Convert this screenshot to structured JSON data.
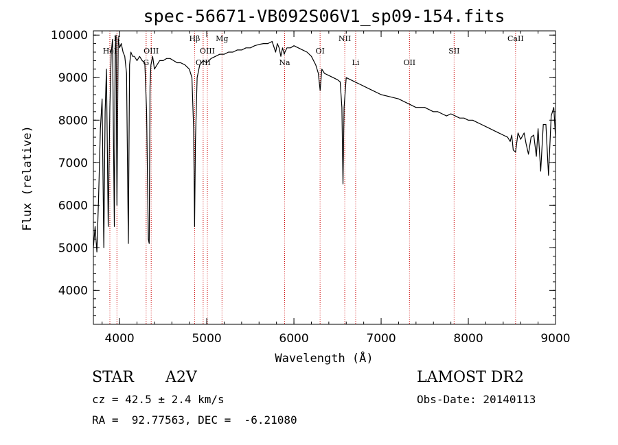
{
  "chart_data": {
    "type": "line",
    "title": "spec-56671-VB092S06V1_sp09-154.fits",
    "xlabel": "Wavelength (Å)",
    "ylabel": "Flux (relative)",
    "xlim": [
      3700,
      9000
    ],
    "ylim": [
      3200,
      10100
    ],
    "xticks": [
      4000,
      5000,
      6000,
      7000,
      8000,
      9000
    ],
    "yticks": [
      4000,
      5000,
      6000,
      7000,
      8000,
      9000,
      10000
    ],
    "grid": false,
    "line_color": "#000000",
    "marker_color": "#cc0000",
    "spectral_lines": [
      {
        "label": "HeI",
        "x": 3889,
        "row": "mid"
      },
      {
        "label": "H",
        "x": 3970,
        "row": "top"
      },
      {
        "label": "G",
        "x": 4305,
        "row": "low"
      },
      {
        "label": "OIII",
        "x": 4363,
        "row": "mid"
      },
      {
        "label": "Hβ",
        "x": 4861,
        "row": "top"
      },
      {
        "label": "OIII",
        "x": 4959,
        "row": "low"
      },
      {
        "label": "OIII",
        "x": 5007,
        "row": "mid"
      },
      {
        "label": "Mg",
        "x": 5175,
        "row": "top"
      },
      {
        "label": "Na",
        "x": 5893,
        "row": "low"
      },
      {
        "label": "OI",
        "x": 6300,
        "row": "mid"
      },
      {
        "label": "NII",
        "x": 6583,
        "row": "top"
      },
      {
        "label": "Li",
        "x": 6708,
        "row": "low"
      },
      {
        "label": "OII",
        "x": 7325,
        "row": "low"
      },
      {
        "label": "SII",
        "x": 7837,
        "row": "mid"
      },
      {
        "label": "CaII",
        "x": 8542,
        "row": "top"
      }
    ],
    "series": [
      {
        "x": [
          3700,
          3720,
          3740,
          3760,
          3780,
          3800,
          3820,
          3835,
          3850,
          3870,
          3889,
          3905,
          3920,
          3940,
          3950,
          3960,
          3970,
          3985,
          4000,
          4020,
          4040,
          4060,
          4080,
          4101,
          4115,
          4130,
          4150,
          4170,
          4200,
          4230,
          4260,
          4290,
          4310,
          4330,
          4340,
          4350,
          4360,
          4380,
          4400,
          4430,
          4460,
          4500,
          4540,
          4580,
          4620,
          4660,
          4700,
          4750,
          4800,
          4830,
          4850,
          4861,
          4870,
          4890,
          4920,
          4960,
          5000,
          5050,
          5100,
          5150,
          5200,
          5250,
          5300,
          5350,
          5400,
          5450,
          5500,
          5550,
          5600,
          5650,
          5700,
          5750,
          5790,
          5810,
          5830,
          5850,
          5870,
          5889,
          5896,
          5920,
          5960,
          6000,
          6050,
          6100,
          6150,
          6200,
          6250,
          6280,
          6300,
          6320,
          6350,
          6400,
          6450,
          6500,
          6530,
          6550,
          6563,
          6575,
          6600,
          6650,
          6700,
          6750,
          6800,
          6900,
          7000,
          7100,
          7200,
          7300,
          7400,
          7500,
          7550,
          7600,
          7650,
          7700,
          7750,
          7800,
          7850,
          7900,
          7950,
          8000,
          8050,
          8100,
          8150,
          8200,
          8250,
          8300,
          8350,
          8400,
          8450,
          8480,
          8498,
          8515,
          8542,
          8570,
          8600,
          8640,
          8662,
          8690,
          8720,
          8750,
          8780,
          8800,
          8830,
          8860,
          8890,
          8920,
          8950,
          8980,
          9000
        ],
        "y": [
          5000,
          5500,
          4900,
          6200,
          7800,
          8500,
          5000,
          8200,
          9200,
          5500,
          8300,
          9600,
          9900,
          5500,
          9700,
          10000,
          6000,
          9900,
          9700,
          9800,
          9600,
          9500,
          9100,
          5100,
          9300,
          9600,
          9500,
          9500,
          9400,
          9500,
          9400,
          9350,
          8200,
          5200,
          5100,
          8800,
          9300,
          9500,
          9200,
          9300,
          9400,
          9400,
          9450,
          9450,
          9400,
          9350,
          9350,
          9300,
          9200,
          9000,
          7800,
          5500,
          7500,
          9000,
          9300,
          9400,
          9350,
          9450,
          9500,
          9550,
          9550,
          9600,
          9600,
          9650,
          9650,
          9700,
          9700,
          9750,
          9780,
          9800,
          9800,
          9850,
          9600,
          9800,
          9700,
          9500,
          9700,
          9550,
          9600,
          9700,
          9700,
          9750,
          9700,
          9650,
          9600,
          9500,
          9300,
          9100,
          8700,
          9200,
          9100,
          9050,
          9000,
          8950,
          8900,
          8300,
          6500,
          8300,
          9000,
          8950,
          8900,
          8850,
          8800,
          8700,
          8600,
          8550,
          8500,
          8400,
          8300,
          8300,
          8250,
          8200,
          8200,
          8150,
          8100,
          8150,
          8100,
          8050,
          8050,
          8000,
          8000,
          7950,
          7900,
          7850,
          7800,
          7750,
          7700,
          7650,
          7600,
          7500,
          7650,
          7300,
          7250,
          7700,
          7550,
          7700,
          7450,
          7200,
          7600,
          7650,
          7150,
          7800,
          6800,
          7900,
          7900,
          6700,
          8100,
          8300,
          7600
        ]
      }
    ]
  },
  "info": {
    "class_label": "STAR",
    "subclass_label": "A2V",
    "survey": "LAMOST DR2",
    "cz": "cz = 42.5 ± 2.4 km/s",
    "obs_date": "Obs-Date: 20140113",
    "radec": "RA =  92.77563, DEC =  -6.21080"
  }
}
